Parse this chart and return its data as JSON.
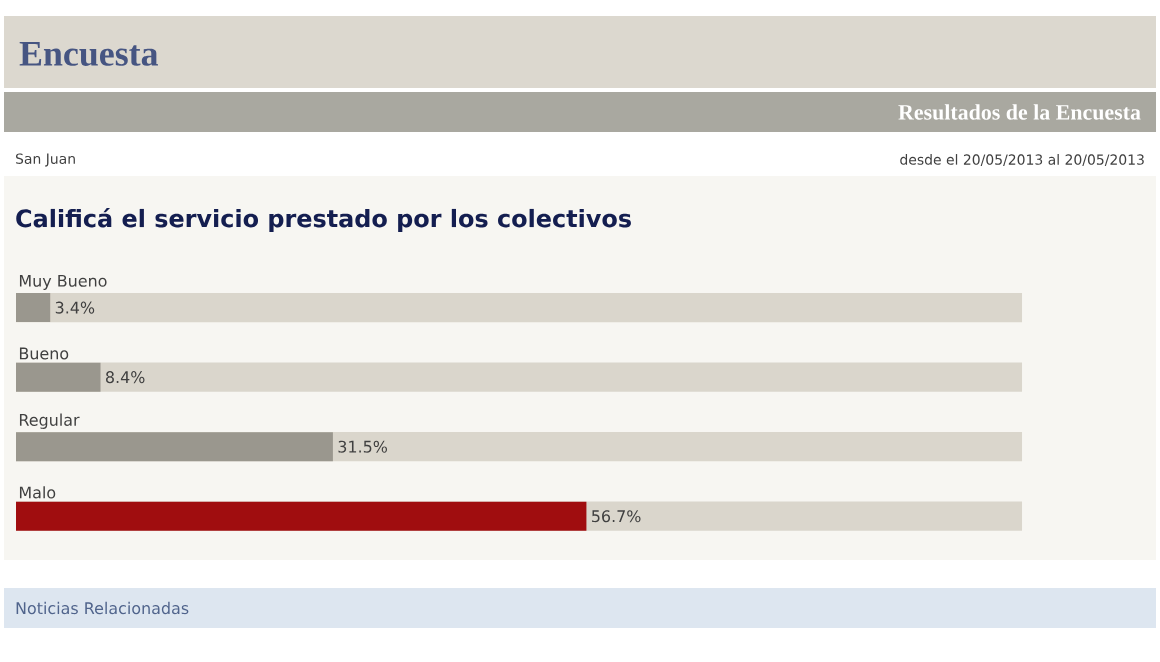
{
  "chart_data": {
    "type": "bar",
    "orientation": "horizontal",
    "title": "Calificá el servicio prestado por los colectivos",
    "annotations": [
      "Encuesta",
      "Resultados de la Encuesta",
      "San Juan",
      "desde el 20/05/2013 al 20/05/2013",
      "Noticias Relacionadas"
    ],
    "categories": [
      "Muy Bueno",
      "Bueno",
      "Regular",
      "Malo"
    ],
    "values": [
      3.4,
      8.4,
      31.5,
      56.7
    ],
    "value_labels": [
      "3.4%",
      "8.4%",
      "31.5%",
      "56.7%"
    ],
    "colors": [
      "#9a978e",
      "#9a978e",
      "#9a978e",
      "#a00d0f"
    ],
    "xlim": [
      0,
      100
    ]
  }
}
